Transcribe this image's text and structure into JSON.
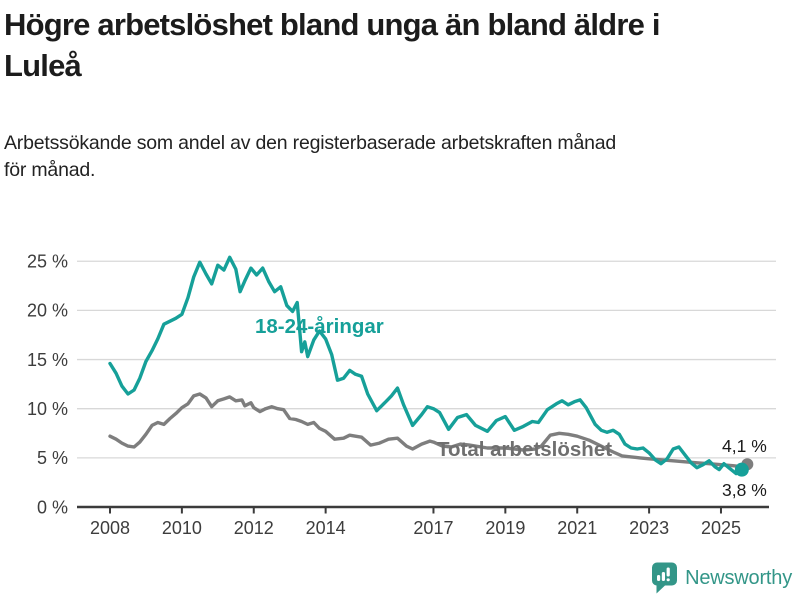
{
  "header": {
    "title_lines": [
      "Högre arbetslöshet bland unga än bland äldre i",
      "Luleå"
    ],
    "subtitle_lines": [
      "Arbetssökande som andel av den registerbaserade arbetskraften månad",
      "för månad."
    ]
  },
  "footer": {
    "brand": "Newsworthy",
    "brand_color": "#339688"
  },
  "chart_data": {
    "type": "line",
    "title": "Högre arbetslöshet bland unga än bland äldre i Luleå",
    "subtitle": "Arbetssökande som andel av den registerbaserade arbetskraften månad för månad.",
    "xlabel": "",
    "ylabel": "",
    "x_range": [
      2008,
      2025.6
    ],
    "ylim": [
      0,
      26
    ],
    "grid": "horizontal",
    "y_ticks": [
      {
        "value": 0,
        "label": "0 %"
      },
      {
        "value": 5,
        "label": "5 %"
      },
      {
        "value": 10,
        "label": "10 %"
      },
      {
        "value": 15,
        "label": "15 %"
      },
      {
        "value": 20,
        "label": "20 %"
      },
      {
        "value": 25,
        "label": "25 %"
      }
    ],
    "x_ticks": [
      {
        "value": 2008,
        "label": "2008"
      },
      {
        "value": 2010,
        "label": "2010"
      },
      {
        "value": 2012,
        "label": "2012"
      },
      {
        "value": 2014,
        "label": "2014"
      },
      {
        "value": 2017,
        "label": "2017"
      },
      {
        "value": 2019,
        "label": "2019"
      },
      {
        "value": 2021,
        "label": "2021"
      },
      {
        "value": 2023,
        "label": "2023"
      },
      {
        "value": 2025,
        "label": "2025"
      }
    ],
    "series": [
      {
        "name": "Total arbetslöshet",
        "color": "#7E7E7E",
        "label_color": "#6F6F6F",
        "end_label": "4,1 %",
        "end_value": 4.1,
        "points": [
          [
            2008.0,
            7.2
          ],
          [
            2008.17,
            6.9
          ],
          [
            2008.33,
            6.5
          ],
          [
            2008.5,
            6.2
          ],
          [
            2008.67,
            6.1
          ],
          [
            2008.83,
            6.6
          ],
          [
            2009.0,
            7.4
          ],
          [
            2009.17,
            8.3
          ],
          [
            2009.33,
            8.6
          ],
          [
            2009.5,
            8.4
          ],
          [
            2009.67,
            9.0
          ],
          [
            2009.83,
            9.5
          ],
          [
            2010.0,
            10.1
          ],
          [
            2010.17,
            10.5
          ],
          [
            2010.33,
            11.3
          ],
          [
            2010.5,
            11.5
          ],
          [
            2010.67,
            11.1
          ],
          [
            2010.83,
            10.2
          ],
          [
            2011.0,
            10.8
          ],
          [
            2011.17,
            11.0
          ],
          [
            2011.33,
            11.2
          ],
          [
            2011.5,
            10.8
          ],
          [
            2011.67,
            10.9
          ],
          [
            2011.75,
            10.3
          ],
          [
            2011.92,
            10.6
          ],
          [
            2012.0,
            10.1
          ],
          [
            2012.17,
            9.7
          ],
          [
            2012.33,
            10.0
          ],
          [
            2012.5,
            10.2
          ],
          [
            2012.67,
            10.0
          ],
          [
            2012.83,
            9.9
          ],
          [
            2013.0,
            9.0
          ],
          [
            2013.17,
            8.9
          ],
          [
            2013.33,
            8.7
          ],
          [
            2013.5,
            8.4
          ],
          [
            2013.67,
            8.6
          ],
          [
            2013.83,
            8.0
          ],
          [
            2014.0,
            7.7
          ],
          [
            2014.25,
            6.9
          ],
          [
            2014.5,
            7.0
          ],
          [
            2014.67,
            7.3
          ],
          [
            2014.83,
            7.2
          ],
          [
            2015.0,
            7.1
          ],
          [
            2015.25,
            6.3
          ],
          [
            2015.5,
            6.5
          ],
          [
            2015.75,
            6.9
          ],
          [
            2016.0,
            7.0
          ],
          [
            2016.25,
            6.2
          ],
          [
            2016.42,
            5.9
          ],
          [
            2016.67,
            6.4
          ],
          [
            2016.9,
            6.7
          ],
          [
            2017.0,
            6.6
          ],
          [
            2017.25,
            6.2
          ],
          [
            2017.5,
            6.1
          ],
          [
            2017.75,
            6.4
          ],
          [
            2018.0,
            6.3
          ],
          [
            2018.5,
            6.0
          ],
          [
            2019.0,
            6.0
          ],
          [
            2019.5,
            5.8
          ],
          [
            2019.83,
            5.9
          ],
          [
            2020.0,
            6.2
          ],
          [
            2020.25,
            7.3
          ],
          [
            2020.5,
            7.5
          ],
          [
            2020.75,
            7.4
          ],
          [
            2021.0,
            7.2
          ],
          [
            2021.33,
            6.8
          ],
          [
            2021.67,
            6.2
          ],
          [
            2022.0,
            5.6
          ],
          [
            2022.25,
            5.2
          ],
          [
            2022.5,
            5.1
          ],
          [
            2022.75,
            5.0
          ],
          [
            2023.0,
            4.9
          ],
          [
            2023.33,
            4.8
          ],
          [
            2023.67,
            4.7
          ],
          [
            2024.0,
            4.6
          ],
          [
            2024.33,
            4.5
          ],
          [
            2024.67,
            4.4
          ],
          [
            2025.0,
            4.3
          ],
          [
            2025.33,
            4.2
          ],
          [
            2025.58,
            4.1
          ]
        ]
      },
      {
        "name": "18-24-åringar",
        "color": "#16A099",
        "label_color": "#16A099",
        "end_label": "3,8 %",
        "end_value": 3.8,
        "points": [
          [
            2008.0,
            14.6
          ],
          [
            2008.17,
            13.6
          ],
          [
            2008.33,
            12.3
          ],
          [
            2008.5,
            11.5
          ],
          [
            2008.67,
            11.9
          ],
          [
            2008.83,
            13.1
          ],
          [
            2009.0,
            14.8
          ],
          [
            2009.17,
            15.9
          ],
          [
            2009.33,
            17.1
          ],
          [
            2009.5,
            18.6
          ],
          [
            2009.67,
            18.9
          ],
          [
            2009.83,
            19.2
          ],
          [
            2010.0,
            19.6
          ],
          [
            2010.17,
            21.3
          ],
          [
            2010.33,
            23.4
          ],
          [
            2010.5,
            24.9
          ],
          [
            2010.67,
            23.7
          ],
          [
            2010.83,
            22.7
          ],
          [
            2011.0,
            24.6
          ],
          [
            2011.17,
            24.1
          ],
          [
            2011.33,
            25.4
          ],
          [
            2011.5,
            24.2
          ],
          [
            2011.62,
            21.9
          ],
          [
            2011.75,
            23.0
          ],
          [
            2011.92,
            24.3
          ],
          [
            2012.08,
            23.6
          ],
          [
            2012.25,
            24.3
          ],
          [
            2012.42,
            22.9
          ],
          [
            2012.58,
            21.9
          ],
          [
            2012.75,
            22.4
          ],
          [
            2012.92,
            20.5
          ],
          [
            2013.08,
            19.9
          ],
          [
            2013.21,
            20.8
          ],
          [
            2013.33,
            15.8
          ],
          [
            2013.42,
            16.8
          ],
          [
            2013.5,
            15.3
          ],
          [
            2013.67,
            17.0
          ],
          [
            2013.83,
            17.9
          ],
          [
            2014.0,
            17.1
          ],
          [
            2014.17,
            15.5
          ],
          [
            2014.33,
            12.9
          ],
          [
            2014.5,
            13.1
          ],
          [
            2014.67,
            13.9
          ],
          [
            2014.83,
            13.5
          ],
          [
            2015.0,
            13.3
          ],
          [
            2015.17,
            11.5
          ],
          [
            2015.42,
            9.8
          ],
          [
            2015.67,
            10.7
          ],
          [
            2015.83,
            11.3
          ],
          [
            2016.0,
            12.1
          ],
          [
            2016.17,
            10.4
          ],
          [
            2016.42,
            8.3
          ],
          [
            2016.67,
            9.4
          ],
          [
            2016.83,
            10.2
          ],
          [
            2017.0,
            10.0
          ],
          [
            2017.17,
            9.6
          ],
          [
            2017.42,
            7.9
          ],
          [
            2017.67,
            9.1
          ],
          [
            2017.92,
            9.4
          ],
          [
            2018.17,
            8.3
          ],
          [
            2018.5,
            7.7
          ],
          [
            2018.75,
            8.8
          ],
          [
            2019.0,
            9.2
          ],
          [
            2019.25,
            7.8
          ],
          [
            2019.5,
            8.2
          ],
          [
            2019.75,
            8.7
          ],
          [
            2019.92,
            8.6
          ],
          [
            2020.17,
            9.9
          ],
          [
            2020.42,
            10.5
          ],
          [
            2020.58,
            10.8
          ],
          [
            2020.75,
            10.4
          ],
          [
            2020.92,
            10.7
          ],
          [
            2021.08,
            10.9
          ],
          [
            2021.25,
            10.1
          ],
          [
            2021.5,
            8.4
          ],
          [
            2021.67,
            7.8
          ],
          [
            2021.83,
            7.6
          ],
          [
            2022.0,
            7.8
          ],
          [
            2022.17,
            7.4
          ],
          [
            2022.33,
            6.4
          ],
          [
            2022.5,
            6.0
          ],
          [
            2022.67,
            5.9
          ],
          [
            2022.83,
            6.0
          ],
          [
            2023.0,
            5.5
          ],
          [
            2023.17,
            4.8
          ],
          [
            2023.33,
            4.4
          ],
          [
            2023.5,
            4.9
          ],
          [
            2023.67,
            5.9
          ],
          [
            2023.83,
            6.1
          ],
          [
            2024.0,
            5.3
          ],
          [
            2024.17,
            4.5
          ],
          [
            2024.33,
            4.0
          ],
          [
            2024.5,
            4.3
          ],
          [
            2024.67,
            4.7
          ],
          [
            2024.83,
            4.1
          ],
          [
            2024.95,
            3.8
          ],
          [
            2025.08,
            4.4
          ],
          [
            2025.25,
            3.9
          ],
          [
            2025.42,
            3.4
          ],
          [
            2025.58,
            3.8
          ]
        ]
      }
    ],
    "series_labels": [
      {
        "text": "18-24-åringar",
        "series": 1
      },
      {
        "text": "Total arbetslöshet",
        "series": 0
      }
    ],
    "end_labels": [
      {
        "text": "4,1 %",
        "series": 0
      },
      {
        "text": "3,8 %",
        "series": 1
      }
    ],
    "legend_position": "inline-labels"
  }
}
